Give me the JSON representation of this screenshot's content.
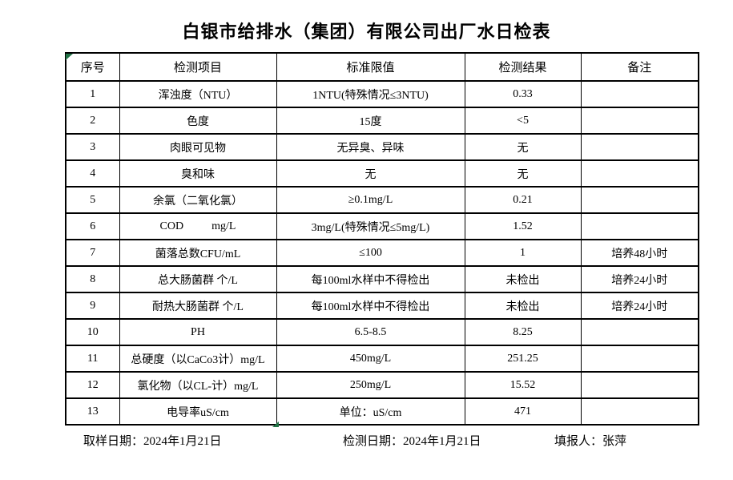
{
  "title": "白银市给排水（集团）有限公司出厂水日检表",
  "colors": {
    "marker_green": "#217346",
    "border": "#000000",
    "background": "#ffffff"
  },
  "table": {
    "headers": [
      "序号",
      "检测项目",
      "标准限值",
      "检测结果",
      "备注"
    ],
    "rows": [
      {
        "no": "1",
        "item": "浑浊度（NTU）",
        "limit": "1NTU(特殊情况≤3NTU)",
        "result": "0.33",
        "remark": ""
      },
      {
        "no": "2",
        "item": "色度",
        "limit": "15度",
        "result": "<5",
        "remark": ""
      },
      {
        "no": "3",
        "item": "肉眼可见物",
        "limit": "无异臭、异味",
        "result": "无",
        "remark": ""
      },
      {
        "no": "4",
        "item": "臭和味",
        "limit": "无",
        "result": "无",
        "remark": ""
      },
      {
        "no": "5",
        "item": "余氯（二氧化氯）",
        "limit": "≥0.1mg/L",
        "result": "0.21",
        "remark": ""
      },
      {
        "no": "6",
        "item": "COD          mg/L",
        "limit": "3mg/L(特殊情况≤5mg/L)",
        "result": "1.52",
        "remark": ""
      },
      {
        "no": "7",
        "item": "菌落总数CFU/mL",
        "limit": "≤100",
        "result": "1",
        "remark": "培养48小时"
      },
      {
        "no": "8",
        "item": "总大肠菌群 个/L",
        "limit": "每100ml水样中不得检出",
        "result": "未检出",
        "remark": "培养24小时"
      },
      {
        "no": "9",
        "item": "耐热大肠菌群 个/L",
        "limit": "每100ml水样中不得检出",
        "result": "未检出",
        "remark": "培养24小时"
      },
      {
        "no": "10",
        "item": "PH",
        "limit": "6.5-8.5",
        "result": "8.25",
        "remark": ""
      },
      {
        "no": "11",
        "item": "总硬度（以CaCo3计）mg/L",
        "limit": "450mg/L",
        "result": "251.25",
        "remark": ""
      },
      {
        "no": "12",
        "item": "氯化物（以CL-计）mg/L",
        "limit": "250mg/L",
        "result": "15.52",
        "remark": ""
      },
      {
        "no": "13",
        "item": "电导率uS/cm",
        "limit": "单位：uS/cm",
        "result": "471",
        "remark": ""
      }
    ]
  },
  "footer": {
    "sampling": {
      "label": "取样日期：",
      "value": "2024年1月21日"
    },
    "testing": {
      "label": "检测日期：",
      "value": "2024年1月21日"
    },
    "reporter": {
      "label": "填报人：",
      "value": "张萍"
    }
  }
}
